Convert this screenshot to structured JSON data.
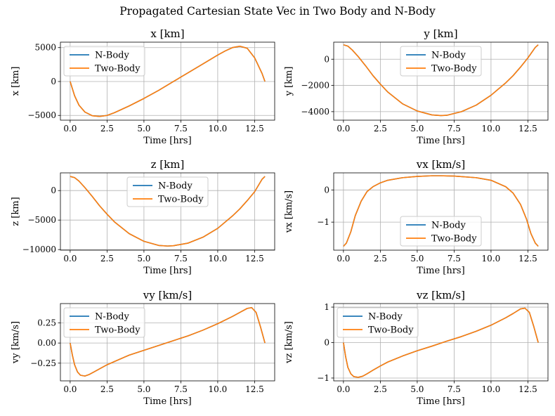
{
  "figure": {
    "title": "Propagated Cartesian State Vec in Two Body and N-Body"
  },
  "colors": {
    "nbody": "#1f77b4",
    "twobody": "#ff7f0e",
    "grid": "#b0b0b0",
    "legend_border": "#cccccc"
  },
  "chart_data": [
    {
      "type": "line",
      "title": "x [km]",
      "xlabel": "Time [hrs]",
      "ylabel": "x [km]",
      "xlim": [
        -0.66,
        13.86
      ],
      "ylim": [
        -5700,
        5800
      ],
      "xticks": [
        0,
        2.5,
        5,
        7.5,
        10,
        12.5
      ],
      "xtick_labels": [
        "0.0",
        "2.5",
        "5.0",
        "7.5",
        "10.0",
        "12.5"
      ],
      "yticks": [
        -5000,
        0,
        5000
      ],
      "ytick_labels": [
        "−5000",
        "0",
        "5000"
      ],
      "grid": true,
      "legend": "top-left",
      "x": [
        0,
        0.3,
        0.6,
        1.0,
        1.5,
        2.0,
        2.5,
        3.0,
        4.0,
        5.0,
        6.0,
        7.0,
        8.0,
        9.0,
        10.0,
        10.5,
        11.0,
        11.5,
        12.0,
        12.5,
        13.0,
        13.2
      ],
      "series": [
        {
          "name": "N-Body",
          "values": [
            0,
            -2100,
            -3500,
            -4500,
            -5050,
            -5150,
            -5000,
            -4600,
            -3600,
            -2500,
            -1300,
            0,
            1300,
            2600,
            3900,
            4500,
            5000,
            5200,
            4900,
            3500,
            1200,
            0
          ]
        },
        {
          "name": "Two-Body",
          "values": [
            0,
            -2100,
            -3500,
            -4500,
            -5050,
            -5150,
            -5000,
            -4600,
            -3600,
            -2500,
            -1300,
            0,
            1300,
            2600,
            3900,
            4500,
            5000,
            5200,
            4900,
            3500,
            1200,
            0
          ]
        }
      ]
    },
    {
      "type": "line",
      "title": "y [km]",
      "xlabel": "Time [hrs]",
      "ylabel": "y [km]",
      "xlim": [
        -0.66,
        13.86
      ],
      "ylim": [
        -4650,
        1300
      ],
      "xticks": [
        0,
        2.5,
        5,
        7.5,
        10,
        12.5
      ],
      "xtick_labels": [
        "0.0",
        "2.5",
        "5.0",
        "7.5",
        "10.0",
        "12.5"
      ],
      "yticks": [
        -4000,
        -2000,
        0
      ],
      "ytick_labels": [
        "−4000",
        "−2000",
        "0"
      ],
      "grid": true,
      "legend": "top-center",
      "x": [
        0,
        0.3,
        0.6,
        1.0,
        1.5,
        2.0,
        2.5,
        3.0,
        4.0,
        5.0,
        6.0,
        6.6,
        7.0,
        8.0,
        9.0,
        10.0,
        11.0,
        11.5,
        12.0,
        12.5,
        13.0,
        13.2
      ],
      "series": [
        {
          "name": "N-Body",
          "values": [
            1100,
            1000,
            700,
            200,
            -500,
            -1250,
            -1900,
            -2500,
            -3400,
            -3950,
            -4250,
            -4300,
            -4280,
            -4000,
            -3500,
            -2750,
            -1800,
            -1250,
            -600,
            100,
            900,
            1100
          ]
        },
        {
          "name": "Two-Body",
          "values": [
            1100,
            1000,
            700,
            200,
            -500,
            -1250,
            -1900,
            -2500,
            -3400,
            -3950,
            -4250,
            -4300,
            -4280,
            -4000,
            -3500,
            -2750,
            -1800,
            -1250,
            -600,
            100,
            900,
            1100
          ]
        }
      ]
    },
    {
      "type": "line",
      "title": "z [km]",
      "xlabel": "Time [hrs]",
      "ylabel": "z [km]",
      "xlim": [
        -0.66,
        13.86
      ],
      "ylim": [
        -10100,
        3000
      ],
      "xticks": [
        0,
        2.5,
        5,
        7.5,
        10,
        12.5
      ],
      "xtick_labels": [
        "0.0",
        "2.5",
        "5.0",
        "7.5",
        "10.0",
        "12.5"
      ],
      "yticks": [
        -10000,
        -5000,
        0
      ],
      "ytick_labels": [
        "−10000",
        "−5000",
        "0"
      ],
      "grid": true,
      "legend": "top-center",
      "x": [
        0,
        0.3,
        0.6,
        1.0,
        1.5,
        2.0,
        2.5,
        3.0,
        4.0,
        5.0,
        6.0,
        6.6,
        7.0,
        8.0,
        9.0,
        10.0,
        11.0,
        11.5,
        12.0,
        12.5,
        13.0,
        13.2
      ],
      "series": [
        {
          "name": "N-Body",
          "values": [
            2400,
            2200,
            1600,
            500,
            -1000,
            -2600,
            -4000,
            -5300,
            -7300,
            -8600,
            -9300,
            -9400,
            -9350,
            -8900,
            -7900,
            -6400,
            -4300,
            -3100,
            -1700,
            -200,
            1900,
            2400
          ]
        },
        {
          "name": "Two-Body",
          "values": [
            2400,
            2200,
            1600,
            500,
            -1000,
            -2600,
            -4000,
            -5300,
            -7300,
            -8600,
            -9300,
            -9400,
            -9350,
            -8900,
            -7900,
            -6400,
            -4300,
            -3100,
            -1700,
            -200,
            1900,
            2400
          ]
        }
      ]
    },
    {
      "type": "line",
      "title": "vx [km/s]",
      "xlabel": "Time [hrs]",
      "ylabel": "vx [km/s]",
      "xlim": [
        -0.66,
        13.86
      ],
      "ylim": [
        -1.87,
        0.53
      ],
      "xticks": [
        0,
        2.5,
        5,
        7.5,
        10,
        12.5
      ],
      "xtick_labels": [
        "0.0",
        "2.5",
        "5.0",
        "7.5",
        "10.0",
        "12.5"
      ],
      "yticks": [
        -1,
        0
      ],
      "ytick_labels": [
        "−1",
        "0"
      ],
      "grid": true,
      "legend": "bottom-center",
      "x": [
        0,
        0.2,
        0.5,
        0.8,
        1.2,
        1.6,
        2.0,
        2.5,
        3.0,
        4.0,
        5.0,
        6.0,
        6.6,
        7.5,
        9.0,
        10.0,
        11.0,
        11.5,
        12.0,
        12.4,
        12.7,
        13.0,
        13.2
      ],
      "series": [
        {
          "name": "N-Body",
          "values": [
            -1.75,
            -1.65,
            -1.3,
            -0.8,
            -0.35,
            -0.05,
            0.1,
            0.22,
            0.3,
            0.38,
            0.42,
            0.44,
            0.44,
            0.43,
            0.38,
            0.3,
            0.1,
            -0.1,
            -0.45,
            -0.9,
            -1.35,
            -1.65,
            -1.75
          ]
        },
        {
          "name": "Two-Body",
          "values": [
            -1.75,
            -1.65,
            -1.3,
            -0.8,
            -0.35,
            -0.05,
            0.1,
            0.22,
            0.3,
            0.38,
            0.42,
            0.44,
            0.44,
            0.43,
            0.38,
            0.3,
            0.1,
            -0.1,
            -0.45,
            -0.9,
            -1.35,
            -1.65,
            -1.75
          ]
        }
      ]
    },
    {
      "type": "line",
      "title": "vy [km/s]",
      "xlabel": "Time [hrs]",
      "ylabel": "vy [km/s]",
      "xlim": [
        -0.66,
        13.86
      ],
      "ylim": [
        -0.47,
        0.49
      ],
      "xticks": [
        0,
        2.5,
        5,
        7.5,
        10,
        12.5
      ],
      "xtick_labels": [
        "0.0",
        "2.5",
        "5.0",
        "7.5",
        "10.0",
        "12.5"
      ],
      "yticks": [
        -0.25,
        0,
        0.25
      ],
      "ytick_labels": [
        "−0.25",
        "0.00",
        "0.25"
      ],
      "grid": true,
      "legend": "top-left",
      "x": [
        0,
        0.15,
        0.3,
        0.5,
        0.7,
        1.0,
        1.3,
        1.6,
        2.0,
        2.5,
        3.0,
        4.0,
        5.0,
        6.0,
        7.0,
        8.0,
        9.0,
        10.0,
        11.0,
        11.5,
        12.0,
        12.3,
        12.6,
        12.9,
        13.2
      ],
      "series": [
        {
          "name": "N-Body",
          "values": [
            0,
            -0.15,
            -0.27,
            -0.36,
            -0.4,
            -0.41,
            -0.39,
            -0.36,
            -0.32,
            -0.27,
            -0.23,
            -0.15,
            -0.09,
            -0.03,
            0.03,
            0.09,
            0.16,
            0.24,
            0.33,
            0.38,
            0.43,
            0.44,
            0.38,
            0.2,
            0
          ]
        },
        {
          "name": "Two-Body",
          "values": [
            0,
            -0.15,
            -0.27,
            -0.36,
            -0.4,
            -0.41,
            -0.39,
            -0.36,
            -0.32,
            -0.27,
            -0.23,
            -0.15,
            -0.09,
            -0.03,
            0.03,
            0.09,
            0.16,
            0.24,
            0.33,
            0.38,
            0.43,
            0.44,
            0.38,
            0.2,
            0
          ]
        }
      ]
    },
    {
      "type": "line",
      "title": "vz [km/s]",
      "xlabel": "Time [hrs]",
      "ylabel": "vz [km/s]",
      "xlim": [
        -0.66,
        13.86
      ],
      "ylim": [
        -1.08,
        1.1
      ],
      "xticks": [
        0,
        2.5,
        5,
        7.5,
        10,
        12.5
      ],
      "xtick_labels": [
        "0.0",
        "2.5",
        "5.0",
        "7.5",
        "10.0",
        "12.5"
      ],
      "yticks": [
        -1,
        0,
        1
      ],
      "ytick_labels": [
        "−1",
        "0",
        "1"
      ],
      "grid": true,
      "legend": "top-left",
      "x": [
        0,
        0.15,
        0.3,
        0.5,
        0.7,
        1.0,
        1.3,
        1.6,
        2.0,
        2.5,
        3.0,
        4.0,
        5.0,
        6.0,
        7.0,
        8.0,
        9.0,
        10.0,
        11.0,
        11.5,
        12.0,
        12.3,
        12.6,
        12.9,
        13.2
      ],
      "series": [
        {
          "name": "N-Body",
          "values": [
            0,
            -0.4,
            -0.7,
            -0.88,
            -0.96,
            -0.98,
            -0.95,
            -0.88,
            -0.78,
            -0.66,
            -0.55,
            -0.38,
            -0.23,
            -0.1,
            0.04,
            0.17,
            0.32,
            0.49,
            0.7,
            0.82,
            0.95,
            0.97,
            0.85,
            0.45,
            0
          ]
        },
        {
          "name": "Two-Body",
          "values": [
            0,
            -0.4,
            -0.7,
            -0.88,
            -0.96,
            -0.98,
            -0.95,
            -0.88,
            -0.78,
            -0.66,
            -0.55,
            -0.38,
            -0.23,
            -0.1,
            0.04,
            0.17,
            0.32,
            0.49,
            0.7,
            0.82,
            0.95,
            0.97,
            0.85,
            0.45,
            0
          ]
        }
      ]
    }
  ]
}
